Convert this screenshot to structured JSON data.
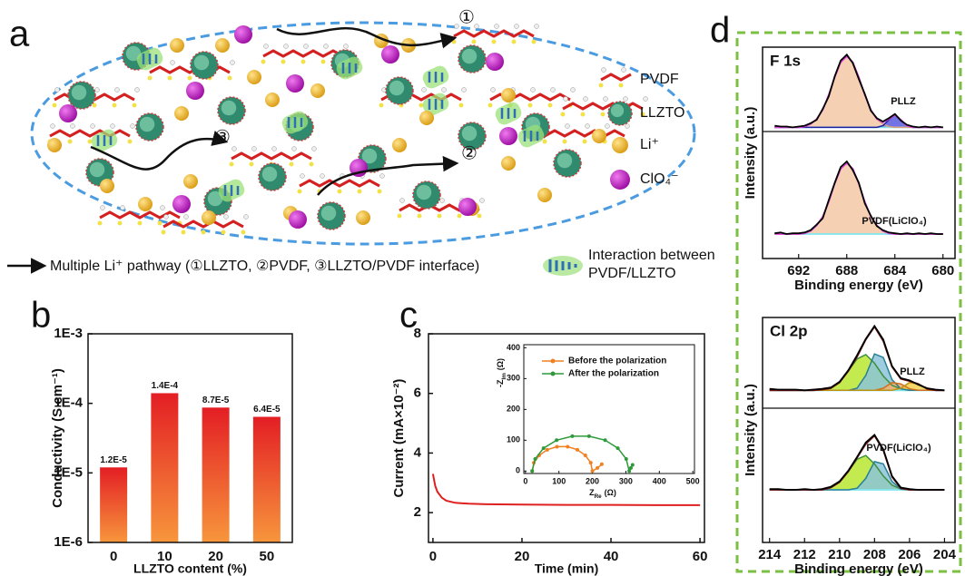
{
  "labels": [
    "a",
    "b",
    "c",
    "d"
  ],
  "diagram": {
    "legend": [
      "PVDF",
      "LLZTO",
      "Li⁺",
      "ClO₄⁻"
    ],
    "markers": [
      "①",
      "②",
      "③"
    ],
    "pathway_caption": "Multiple Li⁺ pathway (①LLZTO, ②PVDF, ③LLZTO/PVDF interface)",
    "interaction_caption": [
      "Interaction between",
      "PVDF/LLZTO"
    ]
  },
  "chart_data": [
    {
      "type": "bar",
      "scale": "log",
      "categories": [
        "0",
        "10",
        "20",
        "50"
      ],
      "values": [
        1.2e-05,
        0.00014,
        8.7e-05,
        6.4e-05
      ],
      "value_labels": [
        "1.2E-5",
        "1.4E-4",
        "8.7E-5",
        "6.4E-5"
      ],
      "gradient": [
        "#e31e24",
        "#f7963c"
      ],
      "x_label": "LLZTO content (%)",
      "y_label": "Conductivity (S cm⁻¹)",
      "ylim": [
        1e-06,
        0.001
      ],
      "yticks": [
        {
          "value": 1e-06,
          "label": "1E-6"
        },
        {
          "value": 1e-05,
          "label": "1E-5"
        },
        {
          "value": 0.0001,
          "label": "1E-4"
        },
        {
          "value": 0.001,
          "label": "1E-3"
        }
      ]
    },
    {
      "type": "line",
      "x_label": "Time (min)",
      "y_label": "Current (mA×10⁻²)",
      "xlim": [
        -1,
        61
      ],
      "xticks": [
        0,
        20,
        40,
        60
      ],
      "ylim": [
        1,
        8
      ],
      "yticks": [
        2,
        4,
        6,
        8
      ],
      "x": [
        0,
        0.5,
        1,
        2,
        3,
        5,
        8,
        12,
        20,
        30,
        40,
        50,
        60
      ],
      "series": [
        {
          "color": "#e02020",
          "values": [
            3.3,
            2.9,
            2.7,
            2.5,
            2.4,
            2.33,
            2.3,
            2.28,
            2.27,
            2.26,
            2.26,
            2.25,
            2.25
          ]
        }
      ]
    },
    {
      "type": "scatter-line",
      "x_label": {
        "main": "Z",
        "sub": "Re",
        "unit": "(Ω)"
      },
      "y_label": {
        "main": "-Z",
        "sub": "Im",
        "unit": "(Ω)"
      },
      "xlim": [
        -5,
        505
      ],
      "xticks": [
        0,
        100,
        200,
        300,
        400,
        500
      ],
      "ylim": [
        -8,
        410
      ],
      "yticks": [
        0,
        100,
        200,
        300,
        400
      ],
      "series": [
        {
          "name": "Before the polarization",
          "color": "#f08020",
          "x": [
            20,
            25,
            41,
            65,
            94,
            126,
            155,
            179,
            195,
            200,
            215,
            228
          ],
          "values": [
            0,
            27,
            51,
            69,
            79,
            79,
            69,
            51,
            27,
            0,
            10,
            22
          ]
        },
        {
          "name": "After the polarization",
          "color": "#2e9a3a",
          "x": [
            20,
            29,
            54,
            93,
            140,
            190,
            238,
            276,
            301,
            310,
            315,
            320
          ],
          "values": [
            0,
            39,
            74,
            100,
            113,
            113,
            100,
            74,
            39,
            0,
            10,
            20
          ]
        }
      ]
    },
    {
      "type": "xps",
      "title": "F 1s",
      "x_label": "Binding energy (eV)",
      "y_label": "Intensity (a.u.)",
      "xlim": [
        695,
        679
      ],
      "xticks": [
        692,
        688,
        684,
        680
      ],
      "x": [
        694,
        693.5,
        693,
        692.5,
        692,
        691.5,
        691,
        690.5,
        690,
        689.5,
        689,
        688.5,
        688,
        687.5,
        687,
        686.5,
        686,
        685.5,
        685,
        684.5,
        684,
        683.5,
        683,
        682.5,
        682,
        681.5,
        681,
        680.5,
        680
      ],
      "spectra": [
        {
          "label": "PLLZ",
          "ylim": [
            0,
            1.01
          ],
          "series": [
            {
              "color": "#7fe6ee",
              "values": [
                0.05,
                0.05,
                0.05,
                0.05,
                0.05,
                0.05,
                0.05,
                0.05,
                0.05,
                0.05,
                0.05,
                0.05,
                0.05,
                0.05,
                0.05,
                0.05,
                0.05,
                0.05,
                0.05,
                0.05,
                0.05,
                0.05,
                0.05,
                0.05,
                0.05,
                0.05,
                0.05,
                0.05,
                0.05
              ]
            },
            {
              "color": "#d9a080",
              "fill": "#f5c8a5",
              "values": [
                0.05,
                0.05,
                0.05,
                0.05,
                0.05,
                0.06,
                0.09,
                0.15,
                0.26,
                0.44,
                0.65,
                0.83,
                0.9,
                0.83,
                0.65,
                0.44,
                0.26,
                0.15,
                0.09,
                0.06,
                0.05,
                0.05,
                0.05,
                0.05,
                0.05,
                0.05,
                0.05,
                0.05,
                0.05
              ]
            },
            {
              "color": "#2020a0",
              "fill": "#5a5ae0",
              "values": [
                0.05,
                0.05,
                0.05,
                0.05,
                0.05,
                0.05,
                0.05,
                0.05,
                0.05,
                0.05,
                0.05,
                0.05,
                0.05,
                0.05,
                0.05,
                0.05,
                0.05,
                0.05,
                0.07,
                0.14,
                0.2,
                0.14,
                0.07,
                0.05,
                0.05,
                0.05,
                0.05,
                0.05,
                0.05
              ]
            },
            {
              "color": "#e040e0",
              "values": [
                0.05,
                0.05,
                0.05,
                0.05,
                0.05,
                0.06,
                0.09,
                0.15,
                0.26,
                0.44,
                0.65,
                0.83,
                0.9,
                0.83,
                0.65,
                0.44,
                0.26,
                0.15,
                0.11,
                0.15,
                0.2,
                0.14,
                0.07,
                0.05,
                0.05,
                0.05,
                0.05,
                0.05,
                0.05
              ]
            },
            {
              "color": "#000000",
              "values": [
                0.07,
                0.06,
                0.06,
                0.05,
                0.06,
                0.07,
                0.1,
                0.14,
                0.27,
                0.42,
                0.66,
                0.85,
                0.92,
                0.82,
                0.63,
                0.45,
                0.25,
                0.16,
                0.12,
                0.16,
                0.21,
                0.13,
                0.08,
                0.06,
                0.05,
                0.06,
                0.05,
                0.06,
                0.05
              ]
            }
          ]
        },
        {
          "label": "PVDF(LiClO₄)",
          "ylim": [
            -0.26,
            1.35
          ],
          "series": [
            {
              "color": "#7fe6ee",
              "values": [
                0.05,
                0.05,
                0.05,
                0.05,
                0.05,
                0.05,
                0.05,
                0.05,
                0.05,
                0.05,
                0.05,
                0.05,
                0.05,
                0.05,
                0.05,
                0.05,
                0.05,
                0.05,
                0.05,
                0.05,
                0.05,
                0.05,
                0.05,
                0.05,
                0.05,
                0.05,
                0.05,
                0.05,
                0.05
              ]
            },
            {
              "color": "#d9a080",
              "fill": "#f5c8a5",
              "values": [
                0.05,
                0.05,
                0.05,
                0.05,
                0.05,
                0.06,
                0.09,
                0.16,
                0.27,
                0.46,
                0.69,
                0.88,
                0.95,
                0.88,
                0.69,
                0.46,
                0.27,
                0.16,
                0.09,
                0.06,
                0.05,
                0.05,
                0.05,
                0.05,
                0.05,
                0.05,
                0.05,
                0.05,
                0.05
              ]
            },
            {
              "color": "#e040e0",
              "values": [
                0.05,
                0.05,
                0.05,
                0.05,
                0.05,
                0.06,
                0.09,
                0.16,
                0.27,
                0.46,
                0.69,
                0.88,
                0.95,
                0.88,
                0.69,
                0.46,
                0.27,
                0.16,
                0.09,
                0.06,
                0.05,
                0.05,
                0.05,
                0.05,
                0.05,
                0.05,
                0.05,
                0.05,
                0.05
              ]
            },
            {
              "color": "#000000",
              "values": [
                0.06,
                0.07,
                0.05,
                0.06,
                0.06,
                0.07,
                0.1,
                0.17,
                0.25,
                0.48,
                0.7,
                0.9,
                0.97,
                0.86,
                0.7,
                0.44,
                0.28,
                0.15,
                0.1,
                0.07,
                0.06,
                0.05,
                0.06,
                0.05,
                0.06,
                0.05,
                0.06,
                0.05,
                0.05
              ]
            }
          ]
        }
      ]
    },
    {
      "type": "xps",
      "title": "Cl 2p",
      "x_label": "Binding energy (eV)",
      "y_label": "Intensity (a.u.)",
      "xlim": [
        214.4,
        203.4
      ],
      "xticks": [
        214,
        212,
        210,
        208,
        206,
        204
      ],
      "x": [
        214,
        213.5,
        213,
        212.5,
        212,
        211.5,
        211,
        210.5,
        210,
        209.5,
        209,
        208.5,
        208,
        207.5,
        207,
        206.5,
        206,
        205.5,
        205,
        204.5,
        204
      ],
      "spectra": [
        {
          "label": "PLLZ",
          "ylim": [
            -0.17,
            1.1
          ],
          "series": [
            {
              "color": "#7fe6ee",
              "values": [
                0.08,
                0.08,
                0.08,
                0.08,
                0.08,
                0.08,
                0.08,
                0.08,
                0.08,
                0.08,
                0.08,
                0.08,
                0.08,
                0.08,
                0.08,
                0.08,
                0.08,
                0.08,
                0.08,
                0.08,
                0.08
              ]
            },
            {
              "color": "#3f8f3f",
              "fill": "#b8e830",
              "values": [
                0.08,
                0.08,
                0.08,
                0.08,
                0.08,
                0.08,
                0.09,
                0.11,
                0.19,
                0.35,
                0.52,
                0.58,
                0.46,
                0.28,
                0.15,
                0.1,
                0.08,
                0.08,
                0.08,
                0.08,
                0.08
              ]
            },
            {
              "color": "#2a7f94",
              "fill": "#8cc4d8",
              "values": [
                0.08,
                0.08,
                0.08,
                0.08,
                0.08,
                0.08,
                0.08,
                0.08,
                0.08,
                0.08,
                0.11,
                0.29,
                0.59,
                0.54,
                0.23,
                0.1,
                0.08,
                0.08,
                0.08,
                0.08,
                0.08
              ]
            },
            {
              "color": "#d07020",
              "fill": "#f5b070",
              "values": [
                0.08,
                0.08,
                0.08,
                0.08,
                0.08,
                0.08,
                0.08,
                0.08,
                0.08,
                0.08,
                0.08,
                0.08,
                0.08,
                0.11,
                0.19,
                0.17,
                0.1,
                0.08,
                0.08,
                0.08,
                0.08
              ]
            },
            {
              "color": "#c09010",
              "fill": "#f5d050",
              "values": [
                0.08,
                0.08,
                0.08,
                0.08,
                0.08,
                0.08,
                0.08,
                0.08,
                0.08,
                0.08,
                0.08,
                0.08,
                0.08,
                0.08,
                0.08,
                0.11,
                0.19,
                0.17,
                0.1,
                0.08,
                0.08
              ]
            },
            {
              "color": "#7a1414",
              "values": [
                0.08,
                0.08,
                0.08,
                0.08,
                0.08,
                0.08,
                0.09,
                0.11,
                0.19,
                0.35,
                0.55,
                0.79,
                0.97,
                0.77,
                0.41,
                0.24,
                0.21,
                0.17,
                0.1,
                0.08,
                0.08
              ]
            },
            {
              "color": "#000000",
              "values": [
                0.1,
                0.09,
                0.09,
                0.09,
                0.08,
                0.09,
                0.1,
                0.12,
                0.2,
                0.36,
                0.57,
                0.8,
                0.98,
                0.79,
                0.42,
                0.25,
                0.22,
                0.16,
                0.11,
                0.09,
                0.08
              ]
            }
          ]
        },
        {
          "label": "PVDF(LiClO₄)",
          "ylim": [
            -0.61,
            1.15
          ],
          "series": [
            {
              "color": "#7fe6ee",
              "values": [
                0.08,
                0.08,
                0.08,
                0.08,
                0.08,
                0.08,
                0.08,
                0.08,
                0.08,
                0.08,
                0.08,
                0.08,
                0.08,
                0.08,
                0.08,
                0.08,
                0.08,
                0.08,
                0.08,
                0.08,
                0.08
              ]
            },
            {
              "color": "#3f8f3f",
              "fill": "#b8e830",
              "values": [
                0.08,
                0.08,
                0.08,
                0.08,
                0.08,
                0.08,
                0.08,
                0.11,
                0.18,
                0.32,
                0.48,
                0.53,
                0.42,
                0.26,
                0.14,
                0.09,
                0.08,
                0.08,
                0.08,
                0.08,
                0.08
              ]
            },
            {
              "color": "#2a7f94",
              "fill": "#8cc4d8",
              "values": [
                0.08,
                0.08,
                0.08,
                0.08,
                0.08,
                0.08,
                0.08,
                0.08,
                0.08,
                0.08,
                0.1,
                0.23,
                0.45,
                0.42,
                0.19,
                0.09,
                0.08,
                0.08,
                0.08,
                0.08,
                0.08
              ]
            },
            {
              "color": "#7a1414",
              "values": [
                0.08,
                0.08,
                0.08,
                0.08,
                0.08,
                0.08,
                0.08,
                0.11,
                0.18,
                0.32,
                0.5,
                0.68,
                0.79,
                0.6,
                0.25,
                0.1,
                0.08,
                0.08,
                0.08,
                0.08,
                0.08
              ]
            },
            {
              "color": "#000000",
              "values": [
                0.09,
                0.09,
                0.08,
                0.08,
                0.09,
                0.08,
                0.09,
                0.12,
                0.19,
                0.33,
                0.51,
                0.7,
                0.8,
                0.61,
                0.26,
                0.11,
                0.09,
                0.08,
                0.08,
                0.08,
                0.08
              ]
            }
          ]
        }
      ]
    }
  ]
}
